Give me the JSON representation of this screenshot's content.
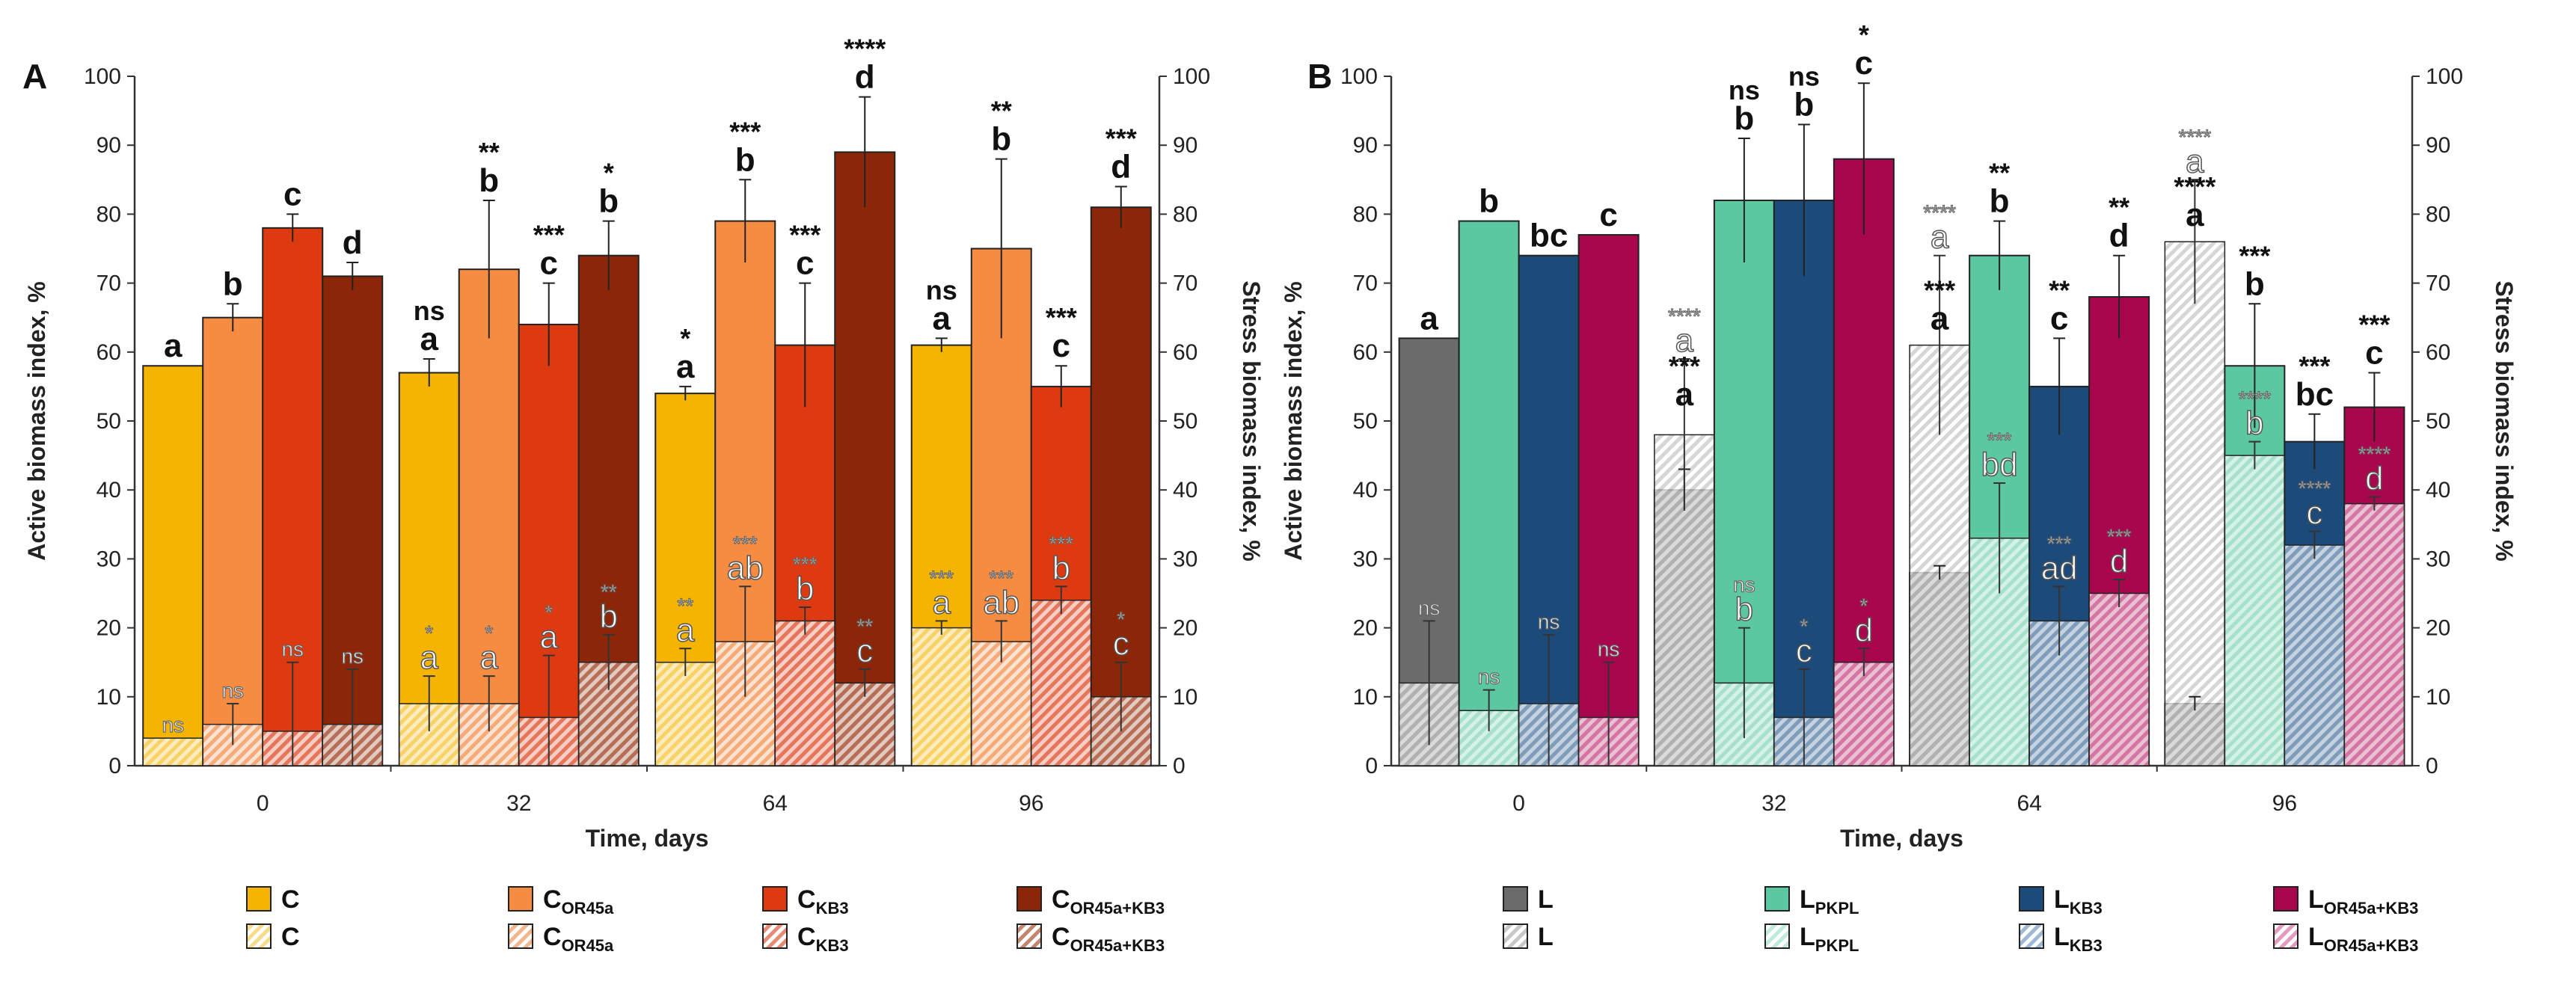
{
  "chart_data": [
    {
      "panel": "A",
      "type": "bar",
      "xlabel": "Time, days",
      "ylabel": "Active biomass index, %",
      "y2label": "Stress biomass index, %",
      "ylim": [
        0,
        100
      ],
      "yticks": [
        "0",
        "10",
        "20",
        "30",
        "40",
        "50",
        "60",
        "70",
        "80",
        "90",
        "100"
      ],
      "categories": [
        "0",
        "32",
        "64",
        "96"
      ],
      "series": [
        {
          "name": "C",
          "sub": "",
          "color": "#F5B400",
          "hatch_color": "#F9DC8A",
          "active": [
            58,
            57,
            54,
            61
          ],
          "active_err": [
            0,
            2,
            1,
            1
          ],
          "stress": [
            4,
            9,
            15,
            20
          ],
          "stress_err": [
            0,
            4,
            2,
            1
          ],
          "active_labels": [
            "a",
            "a",
            "a",
            "a"
          ],
          "active_sig": [
            "",
            "ns",
            "*",
            "ns"
          ],
          "stress_labels": [
            "",
            "a",
            "a",
            "a"
          ],
          "stress_sig": [
            "ns",
            "*",
            "**",
            "***"
          ]
        },
        {
          "name": "C",
          "sub": "OR45a",
          "color": "#F58C42",
          "hatch_color": "#F4B58B",
          "active": [
            65,
            72,
            79,
            75
          ],
          "active_err": [
            2,
            10,
            6,
            13
          ],
          "stress": [
            6,
            9,
            18,
            18
          ],
          "stress_err": [
            3,
            4,
            8,
            3
          ],
          "active_labels": [
            "b",
            "b",
            "b",
            "b"
          ],
          "active_sig": [
            "",
            "**",
            "***",
            "**"
          ],
          "stress_labels": [
            "",
            "a",
            "ab",
            "ab"
          ],
          "stress_sig": [
            "ns",
            "*",
            "***",
            "***"
          ]
        },
        {
          "name": "C",
          "sub": "KB3",
          "color": "#DE3A12",
          "hatch_color": "#E88A74",
          "active": [
            78,
            64,
            61,
            55
          ],
          "active_err": [
            2,
            6,
            9,
            3
          ],
          "stress": [
            5,
            7,
            21,
            24
          ],
          "stress_err": [
            10,
            9,
            2,
            2
          ],
          "active_labels": [
            "c",
            "c",
            "c",
            "c"
          ],
          "active_sig": [
            "",
            "***",
            "***",
            "***"
          ],
          "stress_labels": [
            "",
            "a",
            "b",
            "b"
          ],
          "stress_sig": [
            "ns",
            "*",
            "***",
            "***"
          ]
        },
        {
          "name": "C",
          "sub": "OR45a+KB3",
          "color": "#8B2608",
          "hatch_color": "#C4866E",
          "active": [
            71,
            74,
            89,
            81
          ],
          "active_err": [
            2,
            5,
            8,
            3
          ],
          "stress": [
            6,
            15,
            12,
            10
          ],
          "stress_err": [
            8,
            4,
            2,
            5
          ],
          "active_labels": [
            "d",
            "b",
            "d",
            "d"
          ],
          "active_sig": [
            "",
            "*",
            "****",
            "***"
          ],
          "stress_labels": [
            "",
            "b",
            "c",
            "c"
          ],
          "stress_sig": [
            "ns",
            "**",
            "**",
            "*"
          ]
        }
      ]
    },
    {
      "panel": "B",
      "type": "bar",
      "xlabel": "Time, days",
      "ylabel": "Active biomass index, %",
      "y2label": "Stress biomass index, %",
      "ylim": [
        0,
        100
      ],
      "yticks": [
        "0",
        "10",
        "20",
        "30",
        "40",
        "50",
        "60",
        "70",
        "80",
        "90",
        "100"
      ],
      "categories": [
        "0",
        "32",
        "64",
        "96"
      ],
      "series": [
        {
          "name": "L",
          "sub": "",
          "color": "#6B6B6B",
          "hatch_color": "#C8C8C8",
          "active": [
            62,
            40,
            28,
            9
          ],
          "active_err": [
            0,
            3,
            1,
            1
          ],
          "stress": [
            12,
            48,
            61,
            76
          ],
          "stress_err": [
            9,
            11,
            13,
            9
          ],
          "active_labels": [
            "a",
            "a",
            "a",
            "a"
          ],
          "active_sig": [
            "",
            "***",
            "***",
            "****"
          ],
          "stress_labels": [
            "",
            "a",
            "a",
            "a"
          ],
          "stress_sig": [
            "ns",
            "****",
            "****",
            "****"
          ]
        },
        {
          "name": "L",
          "sub": "PKPL",
          "color": "#5CC8A0",
          "hatch_color": "#BFEBD9",
          "active": [
            79,
            82,
            74,
            58
          ],
          "active_err": [
            0,
            9,
            5,
            9
          ],
          "stress": [
            8,
            12,
            33,
            45
          ],
          "stress_err": [
            3,
            8,
            8,
            2
          ],
          "active_labels": [
            "b",
            "b",
            "b",
            "b"
          ],
          "active_sig": [
            "",
            "ns",
            "**",
            "***"
          ],
          "stress_labels": [
            "",
            "b",
            "bd",
            "b"
          ],
          "stress_sig": [
            "ns",
            "ns",
            "***",
            "****"
          ]
        },
        {
          "name": "L",
          "sub": "KB3",
          "color": "#1C4B7A",
          "hatch_color": "#9FB9D4",
          "active": [
            74,
            82,
            55,
            47
          ],
          "active_err": [
            0,
            11,
            7,
            4
          ],
          "stress": [
            9,
            7,
            21,
            32
          ],
          "stress_err": [
            10,
            7,
            5,
            2
          ],
          "active_labels": [
            "bc",
            "b",
            "c",
            "bc"
          ],
          "active_sig": [
            "",
            "ns",
            "**",
            "***"
          ],
          "stress_labels": [
            "",
            "c",
            "ad",
            "c"
          ],
          "stress_sig": [
            "ns",
            "*",
            "***",
            "****"
          ]
        },
        {
          "name": "L",
          "sub": "OR45a+KB3",
          "color": "#A8074E",
          "hatch_color": "#E39ABF",
          "active": [
            77,
            88,
            68,
            52
          ],
          "active_err": [
            0,
            11,
            6,
            5
          ],
          "stress": [
            7,
            15,
            25,
            38
          ],
          "stress_err": [
            8,
            2,
            2,
            1
          ],
          "active_labels": [
            "c",
            "c",
            "d",
            "c"
          ],
          "active_sig": [
            "",
            "*",
            "**",
            "***"
          ],
          "stress_labels": [
            "",
            "d",
            "d",
            "d"
          ],
          "stress_sig": [
            "ns",
            "*",
            "***",
            "****"
          ]
        }
      ]
    }
  ]
}
